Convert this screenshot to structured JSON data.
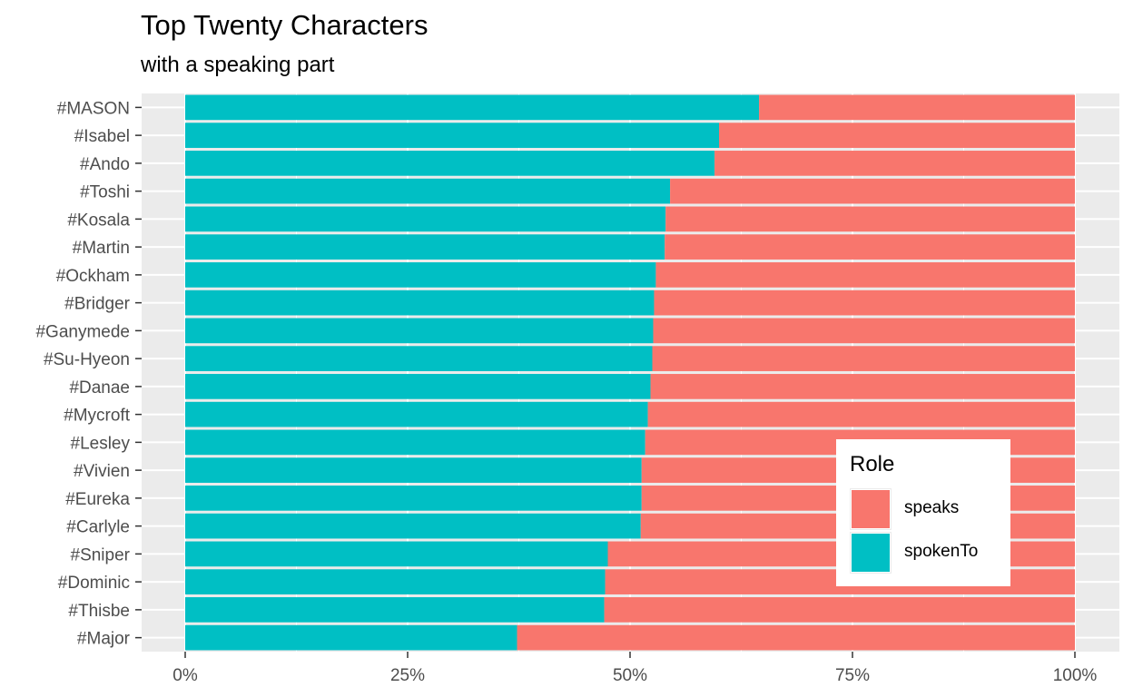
{
  "chart_data": {
    "type": "bar",
    "orientation": "horizontal",
    "stacked": "percent",
    "title": "Top Twenty Characters",
    "subtitle": "with a speaking part",
    "xlabel": "",
    "ylabel": "",
    "xlim": [
      0,
      1
    ],
    "x_ticks": [
      "0%",
      "25%",
      "50%",
      "75%",
      "100%"
    ],
    "grid": true,
    "legend_position": "bottom-right inside",
    "legend_title": "Role",
    "categories": [
      "#MASON",
      "#Isabel",
      "#Ando",
      "#Toshi",
      "#Kosala",
      "#Martin",
      "#Ockham",
      "#Bridger",
      "#Ganymede",
      "#Su-Hyeon",
      "#Danae",
      "#Mycroft",
      "#Lesley",
      "#Vivien",
      "#Eureka",
      "#Carlyle",
      "#Sniper",
      "#Dominic",
      "#Thisbe",
      "#Major"
    ],
    "series": [
      {
        "name": "speaks",
        "color": "#F8766D",
        "values": [
          0.355,
          0.4,
          0.405,
          0.455,
          0.46,
          0.461,
          0.471,
          0.473,
          0.474,
          0.475,
          0.477,
          0.48,
          0.483,
          0.487,
          0.487,
          0.488,
          0.525,
          0.528,
          0.529,
          0.627
        ]
      },
      {
        "name": "spokenTo",
        "color": "#00BFC4",
        "values": [
          0.645,
          0.6,
          0.595,
          0.545,
          0.54,
          0.539,
          0.529,
          0.527,
          0.526,
          0.525,
          0.523,
          0.52,
          0.517,
          0.513,
          0.513,
          0.512,
          0.475,
          0.472,
          0.471,
          0.373
        ]
      }
    ]
  },
  "colors": {
    "panel_background": "#ebebeb",
    "grid_line": "#ffffff",
    "tick_text": "#4d4d4d"
  }
}
